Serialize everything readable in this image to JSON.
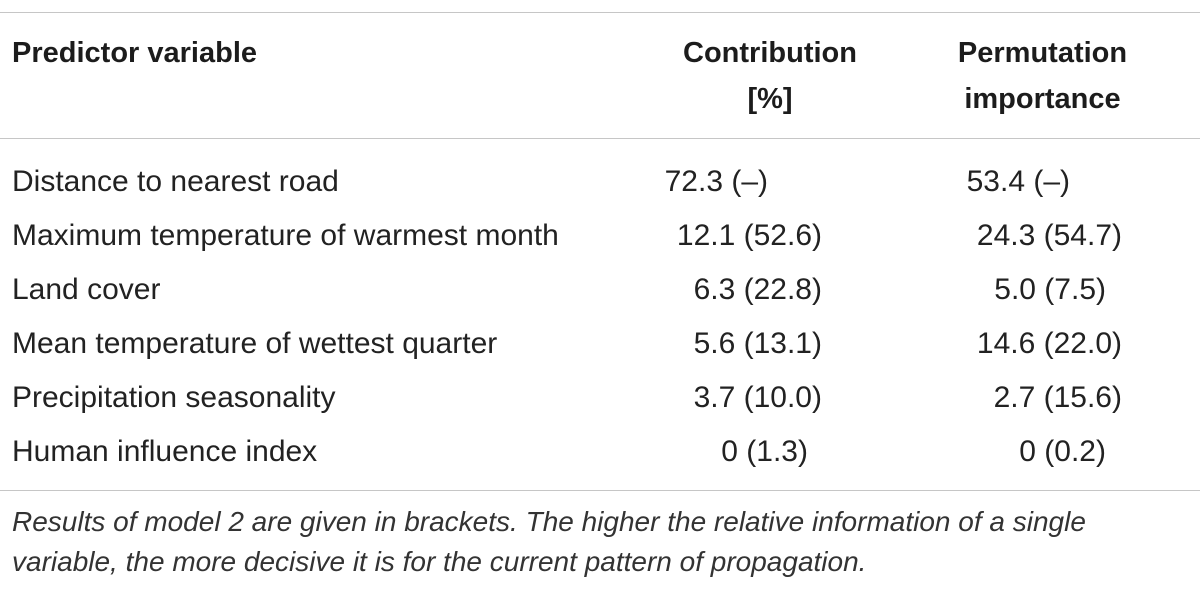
{
  "table": {
    "columns": [
      {
        "line1": "Predictor variable",
        "line2": ""
      },
      {
        "line1": "Contribution",
        "line2": "[%]"
      },
      {
        "line1": "Permutation",
        "line2": "importance"
      }
    ],
    "rows": [
      {
        "variable": "Distance to nearest road",
        "contribution": "72.3 (–)",
        "permutation": "53.4 (–)"
      },
      {
        "variable": "Maximum temperature of warmest month",
        "contribution": "12.1 (52.6)",
        "permutation": "24.3 (54.7)"
      },
      {
        "variable": "Land cover",
        "contribution": "6.3 (22.8)",
        "permutation": "5.0 (7.5)"
      },
      {
        "variable": "Mean temperature of wettest quarter",
        "contribution": "5.6 (13.1)",
        "permutation": "14.6 (22.0)"
      },
      {
        "variable": "Precipitation seasonality",
        "contribution": "3.7 (10.0)",
        "permutation": "2.7 (15.6)"
      },
      {
        "variable": "Human influence index",
        "contribution": "0 (1.3)",
        "permutation": "0 (0.2)"
      }
    ],
    "footnote": "Results of model 2 are given in brackets. The higher the relative information of a single variable, the more decisive it is for the current pattern of propagation."
  }
}
